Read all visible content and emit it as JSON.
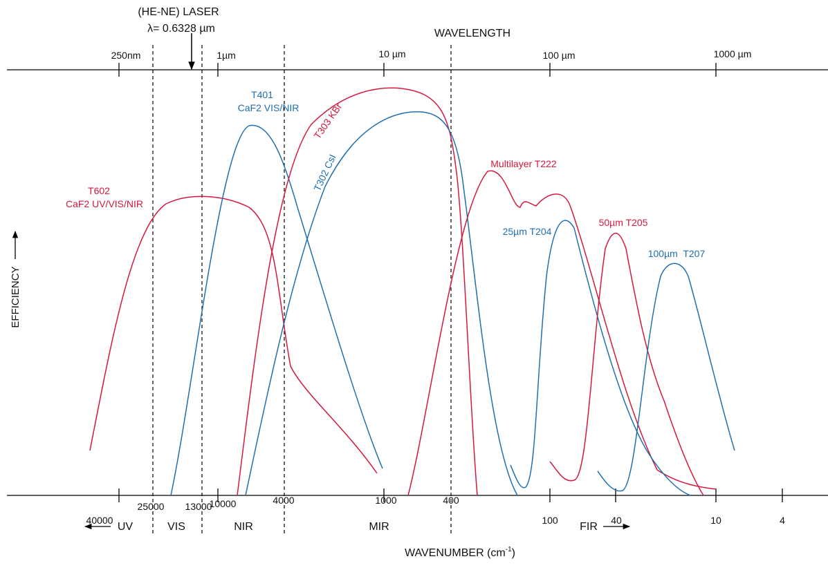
{
  "header": {
    "laser": "(HE-NE) LASER",
    "laser_wavelength": "λ= 0.6328 µm",
    "top_axis": "WAVELENGTH",
    "y_axis": "EFFICIENCY",
    "bottom_axis": {
      "text": "WAVENUMBER (cm",
      "sup": "-1",
      "close": ")"
    }
  },
  "wavelength_ticks": [
    "250nm",
    "1µm",
    "10 µm",
    "100 µm",
    "1000 µm"
  ],
  "wavenumber_ticks": [
    "40000",
    "25000",
    "13000",
    "10000",
    "4000",
    "1000",
    "400",
    "100",
    "40",
    "10",
    "4"
  ],
  "regions": [
    "UV",
    "VIS",
    "NIR",
    "MIR",
    "FIR"
  ],
  "curves": [
    {
      "name": "T602",
      "detail": "CaF2 UV/VIS/NIR"
    },
    {
      "name": "T401",
      "detail": "CaF2 VIS/NIR"
    },
    {
      "name": "T303 KBr"
    },
    {
      "name": "T302 CsI"
    },
    {
      "name": "Multilayer T222"
    },
    {
      "name": "25µm T204"
    },
    {
      "name": "50µm T205"
    },
    {
      "name": "100µm  T207"
    }
  ]
}
